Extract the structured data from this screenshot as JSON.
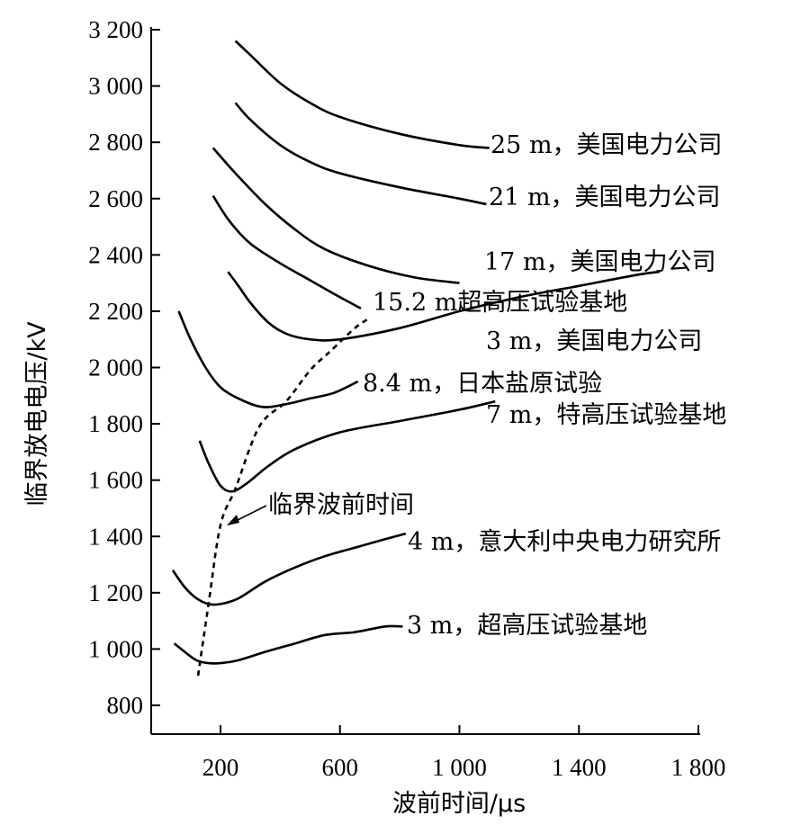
{
  "chart_data": {
    "type": "line",
    "title": "",
    "xlabel": "波前时间/μs",
    "ylabel": "临界放电电压/kV",
    "xlim": [
      0,
      1800
    ],
    "ylim": [
      700,
      3200
    ],
    "x_ticks": [
      200,
      600,
      1000,
      1400,
      1800
    ],
    "x_tick_labels": [
      "200",
      "600",
      "1 000",
      "1 400",
      "1 800"
    ],
    "y_ticks": [
      800,
      1000,
      1200,
      1400,
      1600,
      1800,
      2000,
      2200,
      2400,
      2600,
      2800,
      3000,
      3200
    ],
    "y_tick_labels": [
      "800",
      "1 000",
      "1 200",
      "1 400",
      "1 600",
      "1 800",
      "2 000",
      "2 200",
      "2 400",
      "2 600",
      "2 800",
      "3 000",
      "3 200"
    ],
    "grid": false,
    "series": [
      {
        "name": "25 m，美国电力公司",
        "x": [
          250,
          300,
          400,
          500,
          600,
          800,
          1000,
          1100
        ],
        "y": [
          3160,
          3110,
          3010,
          2940,
          2890,
          2830,
          2790,
          2780
        ]
      },
      {
        "name": "21 m，美国电力公司",
        "x": [
          250,
          300,
          400,
          500,
          600,
          800,
          1000,
          1090
        ],
        "y": [
          2940,
          2880,
          2790,
          2730,
          2690,
          2640,
          2600,
          2580
        ]
      },
      {
        "name": "17 m，美国电力公司",
        "x": [
          175,
          250,
          350,
          450,
          550,
          700,
          850,
          1000
        ],
        "y": [
          2780,
          2690,
          2580,
          2490,
          2420,
          2360,
          2320,
          2300
        ]
      },
      {
        "name": "15.2 m超高压试验基地",
        "x": [
          175,
          230,
          300,
          400,
          500,
          600,
          670
        ],
        "y": [
          2610,
          2520,
          2440,
          2370,
          2310,
          2250,
          2210
        ]
      },
      {
        "name": "3 m，美国电力公司",
        "x": [
          225,
          260,
          300,
          360,
          420,
          500,
          600,
          800,
          1000,
          1200,
          1400,
          1600,
          1670
        ],
        "y": [
          2340,
          2290,
          2230,
          2160,
          2120,
          2100,
          2100,
          2140,
          2200,
          2250,
          2290,
          2330,
          2340
        ]
      },
      {
        "name": "8.4 m，日本盐原试验",
        "x": [
          60,
          100,
          150,
          200,
          260,
          340,
          420,
          500,
          580,
          660
        ],
        "y": [
          2200,
          2100,
          2000,
          1930,
          1890,
          1860,
          1870,
          1890,
          1910,
          1950
        ]
      },
      {
        "name": "7 m，特高压试验基地",
        "x": [
          130,
          160,
          200,
          240,
          290,
          360,
          450,
          600,
          800,
          1000,
          1120
        ],
        "y": [
          1740,
          1660,
          1580,
          1560,
          1590,
          1650,
          1710,
          1770,
          1810,
          1850,
          1880
        ]
      },
      {
        "name": "4 m，意大利中央电力研究所",
        "x": [
          40,
          80,
          120,
          160,
          200,
          260,
          350,
          450,
          550,
          650,
          750,
          820
        ],
        "y": [
          1280,
          1220,
          1180,
          1160,
          1160,
          1180,
          1240,
          1290,
          1330,
          1360,
          1390,
          1410
        ]
      },
      {
        "name": "3 m，超高压试验基地",
        "x": [
          45,
          80,
          120,
          160,
          200,
          260,
          350,
          450,
          550,
          650,
          750,
          810
        ],
        "y": [
          1020,
          990,
          960,
          950,
          950,
          960,
          990,
          1020,
          1050,
          1060,
          1080,
          1080
        ]
      }
    ],
    "labels": [
      {
        "text": "25 m，美国电力公司",
        "x": 1090,
        "y": 2785
      },
      {
        "text": "21 m，美国电力公司",
        "x": 1080,
        "y": 2585
      },
      {
        "text": "17 m，美国电力公司",
        "x": 1070,
        "y": 2370
      },
      {
        "text": "15.2 m超高压试验基地",
        "x": 740,
        "y": 2225
      },
      {
        "text": "3 m，美国电力公司",
        "x": 1070,
        "y": 2045
      },
      {
        "text": "8.4 m，日本盐原试验",
        "x": 690,
        "y": 1955
      },
      {
        "text": "7 m，特高压试验基地",
        "x": 1070,
        "y": 1810
      },
      {
        "text": "4 m，意大利中央电力研究所",
        "x": 840,
        "y": 1380
      },
      {
        "text": "3 m，超高压试验基地",
        "x": 840,
        "y": 1070
      }
    ],
    "critical_curve": {
      "name": "临界波前时间",
      "x": [
        125,
        160,
        200,
        250,
        330,
        420,
        500,
        570,
        650,
        690
      ],
      "y": [
        905,
        1160,
        1440,
        1570,
        1790,
        1880,
        1990,
        2060,
        2140,
        2170
      ]
    },
    "critical_annotation": {
      "text": "临界波前时间",
      "x": 380,
      "y": 1480
    }
  }
}
